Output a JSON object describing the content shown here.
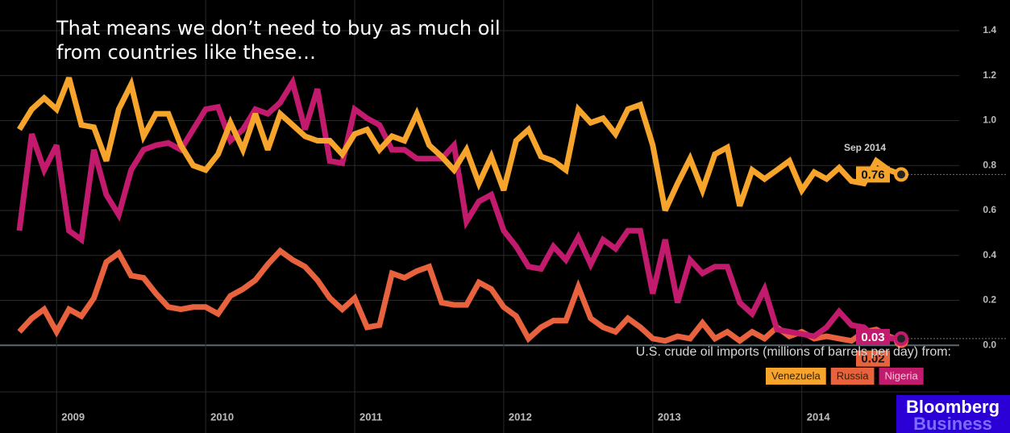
{
  "chart_data": {
    "type": "line",
    "title": "That means we don’t need to buy as much oil from countries like these…",
    "annotation": "Sep 2014",
    "legend_title": "U.S. crude oil imports (millions of barrels per day) from:",
    "source_logo": [
      "Bloomberg",
      "Business"
    ],
    "categories": [
      null,
      null,
      null,
      "2009",
      null,
      null,
      null,
      null,
      null,
      null,
      null,
      null,
      null,
      null,
      null,
      "2010",
      null,
      null,
      null,
      null,
      null,
      null,
      null,
      null,
      null,
      null,
      null,
      "2011",
      null,
      null,
      null,
      null,
      null,
      null,
      null,
      null,
      null,
      null,
      null,
      "2012",
      null,
      null,
      null,
      null,
      null,
      null,
      null,
      null,
      null,
      null,
      null,
      "2013",
      null,
      null,
      null,
      null,
      null,
      null,
      null,
      null,
      null,
      null,
      null,
      "2014",
      null,
      null,
      null,
      null,
      null,
      null,
      null,
      null
    ],
    "series": [
      {
        "name": "Venezuela",
        "color": "#f6a42b",
        "values": [
          0.96,
          1.05,
          1.1,
          1.05,
          1.19,
          0.98,
          0.97,
          0.82,
          1.05,
          1.16,
          0.93,
          1.03,
          1.03,
          0.89,
          0.8,
          0.78,
          0.85,
          0.99,
          0.87,
          1.03,
          0.87,
          1.03,
          0.98,
          0.93,
          0.91,
          0.91,
          0.85,
          0.94,
          0.96,
          0.87,
          0.93,
          0.91,
          1.03,
          0.89,
          0.84,
          0.78,
          0.87,
          0.72,
          0.84,
          0.69,
          0.91,
          0.96,
          0.84,
          0.82,
          0.78,
          1.05,
          0.99,
          1.01,
          0.94,
          1.05,
          1.07,
          0.89,
          0.6,
          0.72,
          0.83,
          0.69,
          0.85,
          0.88,
          0.62,
          0.78,
          0.74,
          0.78,
          0.82,
          0.69,
          0.77,
          0.74,
          0.79,
          0.73,
          0.72,
          0.82,
          0.78,
          0.76
        ]
      },
      {
        "name": "Russia",
        "color": "#e8623d",
        "values": [
          0.06,
          0.12,
          0.16,
          0.06,
          0.16,
          0.13,
          0.21,
          0.37,
          0.41,
          0.31,
          0.3,
          0.23,
          0.17,
          0.16,
          0.17,
          0.17,
          0.14,
          0.22,
          0.25,
          0.29,
          0.36,
          0.42,
          0.38,
          0.35,
          0.29,
          0.21,
          0.16,
          0.21,
          0.08,
          0.09,
          0.32,
          0.3,
          0.33,
          0.35,
          0.19,
          0.18,
          0.18,
          0.28,
          0.25,
          0.17,
          0.13,
          0.03,
          0.08,
          0.11,
          0.11,
          0.26,
          0.12,
          0.08,
          0.06,
          0.12,
          0.08,
          0.03,
          0.02,
          0.04,
          0.03,
          0.1,
          0.03,
          0.06,
          0.02,
          0.06,
          0.03,
          0.08,
          0.04,
          0.06,
          0.03,
          0.04,
          0.03,
          0.02,
          0.06,
          0.07,
          0.04,
          0.02
        ]
      },
      {
        "name": "Nigeria",
        "color": "#c21a6c",
        "values": [
          0.51,
          0.94,
          0.78,
          0.89,
          0.51,
          0.47,
          0.87,
          0.67,
          0.58,
          0.78,
          0.87,
          0.89,
          0.9,
          0.87,
          0.96,
          1.05,
          1.06,
          0.91,
          0.96,
          1.05,
          1.03,
          1.08,
          1.17,
          0.96,
          1.14,
          0.82,
          0.81,
          1.05,
          1.01,
          0.98,
          0.87,
          0.87,
          0.83,
          0.83,
          0.83,
          0.89,
          0.55,
          0.64,
          0.67,
          0.51,
          0.44,
          0.35,
          0.34,
          0.44,
          0.38,
          0.48,
          0.36,
          0.47,
          0.43,
          0.51,
          0.51,
          0.23,
          0.47,
          0.19,
          0.38,
          0.32,
          0.35,
          0.35,
          0.19,
          0.14,
          0.25,
          0.07,
          0.06,
          0.05,
          0.04,
          0.08,
          0.15,
          0.09,
          0.08,
          0.03,
          0.03,
          0.03
        ]
      }
    ],
    "ylim": [
      -0.2,
      1.45
    ],
    "yticks": [
      {
        "value": 0,
        "label": "0.0"
      },
      {
        "value": 0.2,
        "label": "0.2"
      },
      {
        "value": 0.4,
        "label": "0.4"
      },
      {
        "value": 0.6,
        "label": "0.6"
      },
      {
        "value": 0.8,
        "label": "0.8"
      },
      {
        "value": 1.0,
        "label": "1.0"
      },
      {
        "value": 1.2,
        "label": "1.2"
      },
      {
        "value": 1.4,
        "label": "1.4"
      }
    ],
    "grid": true
  }
}
